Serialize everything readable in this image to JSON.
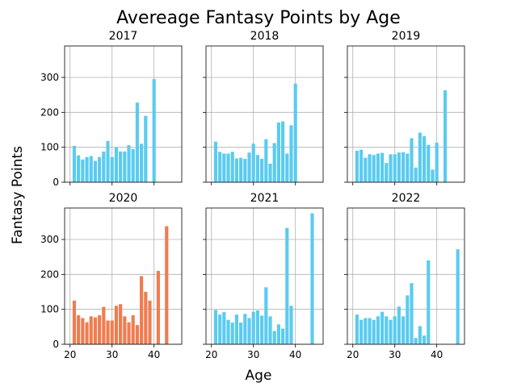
{
  "figure": {
    "title": "Avereage Fantasy Points by Age",
    "xlabel": "Age",
    "ylabel": "Fantasy Points"
  },
  "colors": {
    "default_bar": "#5bcbf0",
    "highlight_bar": "#f07c4f",
    "grid": "#b0b0b0",
    "axes": "#000000",
    "background": "#ffffff"
  },
  "axes_config": {
    "xlim": [
      18.7,
      46.6
    ],
    "ylim": [
      0,
      390
    ],
    "xticks": [
      20,
      30,
      40
    ],
    "yticks": [
      0,
      100,
      200,
      300
    ],
    "grid": true,
    "shared_x": true,
    "shared_y": true
  },
  "chart_data": [
    {
      "type": "bar",
      "subplot_title": "2017",
      "highlight": false,
      "x": [
        21,
        22,
        23,
        24,
        25,
        26,
        27,
        28,
        29,
        30,
        31,
        32,
        33,
        34,
        35,
        36,
        37,
        38,
        39,
        40
      ],
      "values": [
        104,
        77,
        65,
        72,
        75,
        61,
        72,
        88,
        118,
        72,
        100,
        88,
        88,
        106,
        95,
        228,
        110,
        190,
        0,
        295
      ]
    },
    {
      "type": "bar",
      "subplot_title": "2018",
      "highlight": false,
      "x": [
        21,
        22,
        23,
        24,
        25,
        26,
        27,
        28,
        29,
        30,
        31,
        32,
        33,
        34,
        35,
        36,
        37,
        38,
        39,
        40
      ],
      "values": [
        116,
        87,
        82,
        82,
        87,
        68,
        70,
        67,
        85,
        110,
        78,
        67,
        123,
        53,
        112,
        171,
        174,
        82,
        163,
        282
      ]
    },
    {
      "type": "bar",
      "subplot_title": "2019",
      "highlight": false,
      "x": [
        21,
        22,
        23,
        24,
        25,
        26,
        27,
        28,
        29,
        30,
        31,
        32,
        33,
        34,
        35,
        36,
        37,
        38,
        39,
        40,
        41,
        42
      ],
      "values": [
        90,
        93,
        70,
        80,
        78,
        82,
        84,
        55,
        80,
        80,
        85,
        86,
        82,
        126,
        42,
        142,
        132,
        107,
        36,
        113,
        0,
        263
      ]
    },
    {
      "type": "bar",
      "subplot_title": "2020",
      "highlight": true,
      "x": [
        21,
        22,
        23,
        24,
        25,
        26,
        27,
        28,
        29,
        30,
        31,
        32,
        33,
        34,
        35,
        36,
        37,
        38,
        39,
        40,
        41,
        42,
        43
      ],
      "values": [
        125,
        83,
        75,
        63,
        80,
        77,
        83,
        107,
        68,
        68,
        110,
        115,
        80,
        63,
        83,
        55,
        195,
        150,
        125,
        0,
        210,
        0,
        338
      ]
    },
    {
      "type": "bar",
      "subplot_title": "2021",
      "highlight": false,
      "x": [
        21,
        22,
        23,
        24,
        25,
        26,
        27,
        28,
        29,
        30,
        31,
        32,
        33,
        34,
        35,
        36,
        37,
        38,
        39,
        40,
        41,
        42,
        43,
        44
      ],
      "values": [
        98,
        85,
        92,
        70,
        62,
        85,
        62,
        87,
        75,
        93,
        97,
        82,
        163,
        80,
        38,
        57,
        45,
        333,
        110,
        0,
        0,
        0,
        0,
        375
      ]
    },
    {
      "type": "bar",
      "subplot_title": "2022",
      "highlight": false,
      "x": [
        21,
        22,
        23,
        24,
        25,
        26,
        27,
        28,
        29,
        30,
        31,
        32,
        33,
        34,
        35,
        36,
        37,
        38,
        39,
        40,
        41,
        42,
        43,
        44,
        45
      ],
      "values": [
        85,
        70,
        75,
        75,
        70,
        80,
        93,
        80,
        70,
        80,
        108,
        80,
        140,
        175,
        18,
        52,
        25,
        240,
        0,
        0,
        0,
        0,
        0,
        0,
        272
      ]
    }
  ]
}
